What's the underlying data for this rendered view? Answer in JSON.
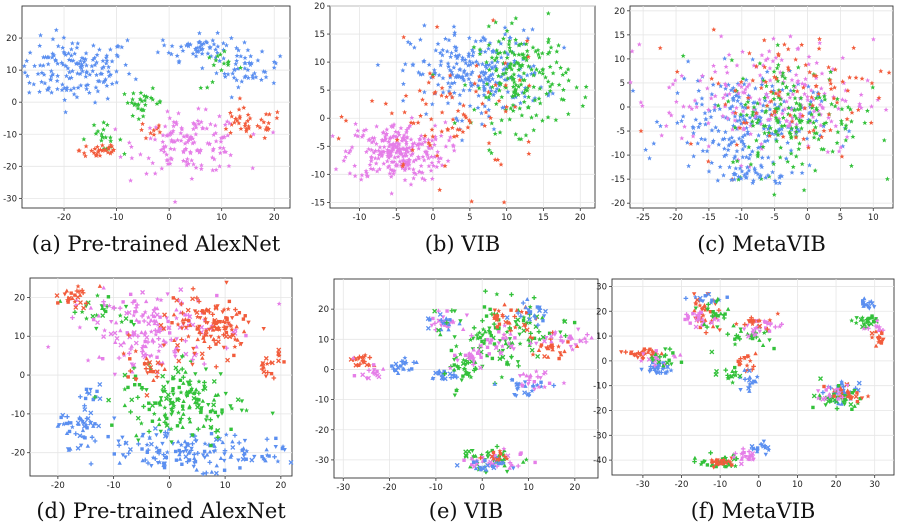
{
  "colors": {
    "blue": "#5b8ff0",
    "green": "#33c13a",
    "red": "#f25c3c",
    "pink": "#e57ee8"
  },
  "chart_data": [
    {
      "type": "scatter",
      "caption": "(a) Pre-trained AlexNet",
      "xlim": [
        -28,
        23
      ],
      "ylim": [
        -33,
        30
      ],
      "xticks": [
        -20,
        -10,
        0,
        10,
        20
      ],
      "yticks": [
        -30,
        -20,
        -10,
        0,
        10,
        20
      ],
      "grid": true,
      "marker": "star",
      "clusters": [
        {
          "color": "blue",
          "cx": -18,
          "cy": 10,
          "sx": 5.5,
          "sy": 5,
          "n": 160
        },
        {
          "color": "blue",
          "cx": 6,
          "cy": 17,
          "sx": 4,
          "sy": 2,
          "n": 60
        },
        {
          "color": "blue",
          "cx": 15,
          "cy": 10,
          "sx": 3,
          "sy": 2.5,
          "n": 45
        },
        {
          "color": "green",
          "cx": -5,
          "cy": 0,
          "sx": 2,
          "sy": 2,
          "n": 30
        },
        {
          "color": "green",
          "cx": -13,
          "cy": -11,
          "sx": 2,
          "sy": 2,
          "n": 20
        },
        {
          "color": "green",
          "cx": 10,
          "cy": 10,
          "sx": 2,
          "sy": 3,
          "n": 15
        },
        {
          "color": "red",
          "cx": -13,
          "cy": -15,
          "sx": 2,
          "sy": 1.5,
          "n": 30
        },
        {
          "color": "red",
          "cx": 15,
          "cy": -7,
          "sx": 3.5,
          "sy": 2.5,
          "n": 40
        },
        {
          "color": "red",
          "cx": -3,
          "cy": -9,
          "sx": 1.5,
          "sy": 1.5,
          "n": 10
        },
        {
          "color": "pink",
          "cx": 4,
          "cy": -13,
          "sx": 5,
          "sy": 4.5,
          "n": 140
        }
      ]
    },
    {
      "type": "scatter",
      "caption": "(b) VIB",
      "xlim": [
        -14,
        22
      ],
      "ylim": [
        -16,
        20
      ],
      "xticks": [
        -10,
        -5,
        0,
        5,
        10,
        15,
        20
      ],
      "yticks": [
        -15,
        -10,
        -5,
        0,
        5,
        10,
        15,
        20
      ],
      "grid": true,
      "marker": "star",
      "clusters": [
        {
          "color": "pink",
          "cx": -5,
          "cy": -6,
          "sx": 3.3,
          "sy": 2.6,
          "n": 260
        },
        {
          "color": "blue",
          "cx": 6,
          "cy": 8,
          "sx": 4.5,
          "sy": 3.8,
          "n": 240
        },
        {
          "color": "green",
          "cx": 12,
          "cy": 7,
          "sx": 3.2,
          "sy": 4.5,
          "n": 180
        },
        {
          "color": "red",
          "cx": 3,
          "cy": 0,
          "sx": 6,
          "sy": 6,
          "n": 90
        }
      ]
    },
    {
      "type": "scatter",
      "caption": "(c) MetaVIB",
      "xlim": [
        -27,
        13
      ],
      "ylim": [
        -21,
        21
      ],
      "xticks": [
        -25,
        -20,
        -15,
        -10,
        -5,
        0,
        5,
        10
      ],
      "yticks": [
        -20,
        -15,
        -10,
        -5,
        0,
        5,
        10,
        15,
        20
      ],
      "grid": true,
      "marker": "star",
      "clusters": [
        {
          "color": "blue",
          "cx": -10,
          "cy": -3,
          "sx": 5.5,
          "sy": 5,
          "n": 220
        },
        {
          "color": "pink",
          "cx": -6,
          "cy": 2,
          "sx": 8,
          "sy": 6,
          "n": 190
        },
        {
          "color": "green",
          "cx": -2,
          "cy": -2,
          "sx": 5,
          "sy": 6,
          "n": 170
        },
        {
          "color": "red",
          "cx": -3,
          "cy": 3,
          "sx": 8,
          "sy": 6,
          "n": 100
        },
        {
          "color": "blue",
          "cx": -8,
          "cy": -14,
          "sx": 3,
          "sy": 1.2,
          "n": 40
        }
      ]
    },
    {
      "type": "scatter",
      "caption": "(d) Pre-trained AlexNet",
      "xlim": [
        -25,
        22
      ],
      "ylim": [
        -26,
        25
      ],
      "xticks": [
        -20,
        -10,
        0,
        10,
        20
      ],
      "yticks": [
        -20,
        -10,
        0,
        10,
        20
      ],
      "grid": true,
      "marker": "mixed",
      "clusters": [
        {
          "color": "blue",
          "cx": 2,
          "cy": -20,
          "sx": 6,
          "sy": 2.5,
          "n": 130
        },
        {
          "color": "blue",
          "cx": -16,
          "cy": -14,
          "sx": 2.5,
          "sy": 2.5,
          "n": 45
        },
        {
          "color": "blue",
          "cx": -14,
          "cy": -5,
          "sx": 1.5,
          "sy": 1.5,
          "n": 12
        },
        {
          "color": "blue",
          "cx": 16,
          "cy": -20,
          "sx": 2.5,
          "sy": 2,
          "n": 25
        },
        {
          "color": "green",
          "cx": 2,
          "cy": -7,
          "sx": 5,
          "sy": 5,
          "n": 170
        },
        {
          "color": "green",
          "cx": -12,
          "cy": 16,
          "sx": 2.5,
          "sy": 2.5,
          "n": 25
        },
        {
          "color": "pink",
          "cx": -3,
          "cy": 12,
          "sx": 6,
          "sy": 5,
          "n": 170
        },
        {
          "color": "red",
          "cx": 7,
          "cy": 13,
          "sx": 4,
          "sy": 4,
          "n": 130
        },
        {
          "color": "red",
          "cx": -17,
          "cy": 20,
          "sx": 2,
          "sy": 1.5,
          "n": 25
        },
        {
          "color": "red",
          "cx": 18,
          "cy": 3,
          "sx": 1.2,
          "sy": 1.5,
          "n": 20
        },
        {
          "color": "red",
          "cx": -3,
          "cy": 3,
          "sx": 3,
          "sy": 3,
          "n": 25
        }
      ]
    },
    {
      "type": "scatter",
      "caption": "(e) VIB",
      "xlim": [
        -32,
        25
      ],
      "ylim": [
        -36,
        30
      ],
      "xticks": [
        -30,
        -20,
        -10,
        0,
        10,
        20
      ],
      "yticks": [
        -30,
        -20,
        -10,
        0,
        10,
        20
      ],
      "grid": true,
      "marker": "mixed",
      "clusters": [
        {
          "color": "red",
          "cx": -26,
          "cy": 3,
          "sx": 1.2,
          "sy": 1,
          "n": 20
        },
        {
          "color": "pink",
          "cx": -25,
          "cy": -1,
          "sx": 1.2,
          "sy": 1.5,
          "n": 15
        },
        {
          "color": "blue",
          "cx": -17,
          "cy": 1,
          "sx": 1.2,
          "sy": 1.2,
          "n": 20
        },
        {
          "color": "blue",
          "cx": -8,
          "cy": -2,
          "sx": 1.5,
          "sy": 1.2,
          "n": 20
        },
        {
          "color": "pink",
          "cx": -8,
          "cy": 16,
          "sx": 2,
          "sy": 1.5,
          "n": 25
        },
        {
          "color": "blue",
          "cx": -8,
          "cy": 16,
          "sx": 1.5,
          "sy": 1.2,
          "n": 15
        },
        {
          "color": "green",
          "cx": 5,
          "cy": 12,
          "sx": 6,
          "sy": 5,
          "n": 110
        },
        {
          "color": "red",
          "cx": 6,
          "cy": 17,
          "sx": 3,
          "sy": 2.5,
          "n": 30
        },
        {
          "color": "pink",
          "cx": 3,
          "cy": 9,
          "sx": 3,
          "sy": 2,
          "n": 25
        },
        {
          "color": "blue",
          "cx": 11,
          "cy": 18,
          "sx": 2,
          "sy": 2,
          "n": 20
        },
        {
          "color": "red",
          "cx": 15,
          "cy": 7,
          "sx": 2,
          "sy": 2,
          "n": 25
        },
        {
          "color": "pink",
          "cx": 18,
          "cy": 10,
          "sx": 2.5,
          "sy": 1.5,
          "n": 25
        },
        {
          "color": "green",
          "cx": -3,
          "cy": 0,
          "sx": 2.5,
          "sy": 4,
          "n": 40
        },
        {
          "color": "pink",
          "cx": -3,
          "cy": 4,
          "sx": 2,
          "sy": 2,
          "n": 20
        },
        {
          "color": "blue",
          "cx": 10,
          "cy": -6,
          "sx": 3,
          "sy": 1.5,
          "n": 25
        },
        {
          "color": "pink",
          "cx": 12,
          "cy": -4,
          "sx": 3,
          "sy": 2,
          "n": 20
        },
        {
          "color": "green",
          "cx": 2,
          "cy": -30,
          "sx": 3.5,
          "sy": 1.8,
          "n": 40
        },
        {
          "color": "pink",
          "cx": 3,
          "cy": -30,
          "sx": 3,
          "sy": 1.5,
          "n": 30
        },
        {
          "color": "blue",
          "cx": 1,
          "cy": -31,
          "sx": 2.5,
          "sy": 1.2,
          "n": 20
        },
        {
          "color": "red",
          "cx": 4,
          "cy": -29,
          "sx": 2,
          "sy": 1,
          "n": 10
        }
      ]
    },
    {
      "type": "scatter",
      "caption": "(f) MetaVIB",
      "xlim": [
        -38,
        35
      ],
      "ylim": [
        -46,
        33
      ],
      "xticks": [
        -30,
        -20,
        -10,
        0,
        10,
        20,
        30
      ],
      "yticks": [
        -40,
        -30,
        -20,
        -10,
        0,
        10,
        20,
        30
      ],
      "grid": true,
      "marker": "mixed",
      "clusters": [
        {
          "color": "red",
          "cx": -30,
          "cy": 3,
          "sx": 2.5,
          "sy": 1,
          "n": 30
        },
        {
          "color": "blue",
          "cx": -27,
          "cy": -3,
          "sx": 2,
          "sy": 2,
          "n": 25
        },
        {
          "color": "pink",
          "cx": -26,
          "cy": 2,
          "sx": 2.5,
          "sy": 1.5,
          "n": 15
        },
        {
          "color": "green",
          "cx": -24,
          "cy": 1,
          "sx": 2,
          "sy": 2,
          "n": 15
        },
        {
          "color": "red",
          "cx": -14,
          "cy": 20,
          "sx": 2,
          "sy": 4,
          "n": 35
        },
        {
          "color": "pink",
          "cx": -15,
          "cy": 17,
          "sx": 2.5,
          "sy": 2,
          "n": 20
        },
        {
          "color": "blue",
          "cx": -13,
          "cy": 25,
          "sx": 2,
          "sy": 1,
          "n": 12
        },
        {
          "color": "green",
          "cx": -11,
          "cy": 18,
          "sx": 2,
          "sy": 3,
          "n": 20
        },
        {
          "color": "green",
          "cx": -2,
          "cy": 10,
          "sx": 2.5,
          "sy": 2.5,
          "n": 25
        },
        {
          "color": "pink",
          "cx": 2,
          "cy": 14,
          "sx": 2.5,
          "sy": 2,
          "n": 25
        },
        {
          "color": "red",
          "cx": 0,
          "cy": 15,
          "sx": 2,
          "sy": 2,
          "n": 15
        },
        {
          "color": "red",
          "cx": -3,
          "cy": -1,
          "sx": 1.5,
          "sy": 2,
          "n": 15
        },
        {
          "color": "blue",
          "cx": -3,
          "cy": -8,
          "sx": 1.5,
          "sy": 2,
          "n": 15
        },
        {
          "color": "green",
          "cx": -7,
          "cy": -5,
          "sx": 2,
          "sy": 1.5,
          "n": 15
        },
        {
          "color": "blue",
          "cx": 28,
          "cy": 23,
          "sx": 1,
          "sy": 1.2,
          "n": 15
        },
        {
          "color": "green",
          "cx": 28,
          "cy": 16,
          "sx": 2,
          "sy": 1.5,
          "n": 25
        },
        {
          "color": "pink",
          "cx": 30,
          "cy": 13,
          "sx": 1.2,
          "sy": 1.5,
          "n": 10
        },
        {
          "color": "red",
          "cx": 31,
          "cy": 9,
          "sx": 1.2,
          "sy": 1,
          "n": 15
        },
        {
          "color": "blue",
          "cx": 21,
          "cy": -13,
          "sx": 2.5,
          "sy": 2,
          "n": 35
        },
        {
          "color": "green",
          "cx": 20,
          "cy": -15,
          "sx": 3,
          "sy": 2.5,
          "n": 35
        },
        {
          "color": "red",
          "cx": 23,
          "cy": -14,
          "sx": 2.5,
          "sy": 2,
          "n": 20
        },
        {
          "color": "pink",
          "cx": 18,
          "cy": -13,
          "sx": 2,
          "sy": 1.5,
          "n": 15
        },
        {
          "color": "green",
          "cx": -10,
          "cy": -40,
          "sx": 2.5,
          "sy": 1.5,
          "n": 35
        },
        {
          "color": "red",
          "cx": -9,
          "cy": -41,
          "sx": 2,
          "sy": 1,
          "n": 20
        },
        {
          "color": "pink",
          "cx": -3,
          "cy": -38,
          "sx": 2,
          "sy": 1.5,
          "n": 20
        },
        {
          "color": "blue",
          "cx": 1,
          "cy": -35,
          "sx": 1.2,
          "sy": 1,
          "n": 15
        }
      ]
    }
  ]
}
